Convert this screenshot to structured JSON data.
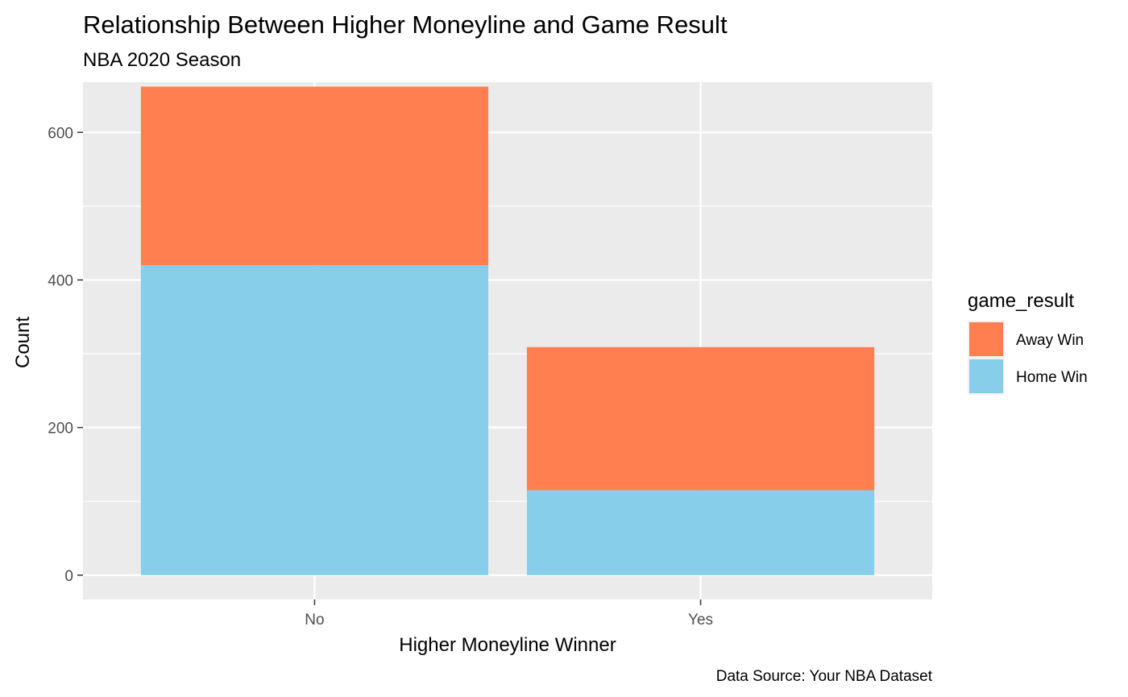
{
  "chart_data": {
    "type": "bar",
    "stacked": true,
    "title": "Relationship Between Higher Moneyline and Game Result",
    "subtitle": "NBA 2020 Season",
    "xlabel": "Higher Moneyline Winner",
    "ylabel": "Count",
    "caption": "Data Source: Your NBA Dataset",
    "categories": [
      "No",
      "Yes"
    ],
    "series": [
      {
        "name": "Home Win",
        "values": [
          420,
          115
        ],
        "color": "#87CEEB"
      },
      {
        "name": "Away Win",
        "values": [
          242,
          194
        ],
        "color": "#FF7F50"
      }
    ],
    "ylim": [
      -33,
      668
    ],
    "yticks": [
      0,
      200,
      400,
      600
    ],
    "grid": true,
    "legend": {
      "title": "game_result",
      "position": "right",
      "order": [
        "Away Win",
        "Home Win"
      ]
    },
    "colors": {
      "panel": "#EBEBEB",
      "grid": "#FFFFFF"
    }
  }
}
